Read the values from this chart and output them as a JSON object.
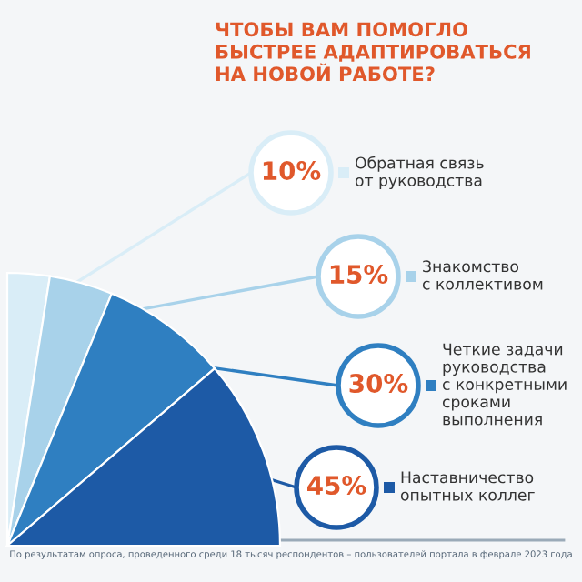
{
  "chart_data": {
    "type": "pie",
    "title": "ЧТОБЫ ВАМ ПОМОГЛО\nБЫСТРЕЕ АДАПТИРОВАТЬСЯ\nНА НОВОЙ РАБОТЕ?",
    "categories": [
      "Обратная связь\nот руководства",
      "Знакомство\nс коллективом",
      "Четкие задачи\nруководства\nс конкретными\nсроками\nвыполнения",
      "Наставничество\nопытных коллег"
    ],
    "values": [
      10,
      15,
      30,
      45
    ],
    "value_labels": [
      "10%",
      "15%",
      "30%",
      "45%"
    ],
    "colors": [
      "#d9edf7",
      "#a8d2ea",
      "#2f7fc1",
      "#1d5aa6"
    ],
    "annotations": [
      "По результатам опроса, проведенного среди 18 тысяч респондентов – пользователей портала в феврале 2023 года"
    ],
    "legend": "right"
  }
}
